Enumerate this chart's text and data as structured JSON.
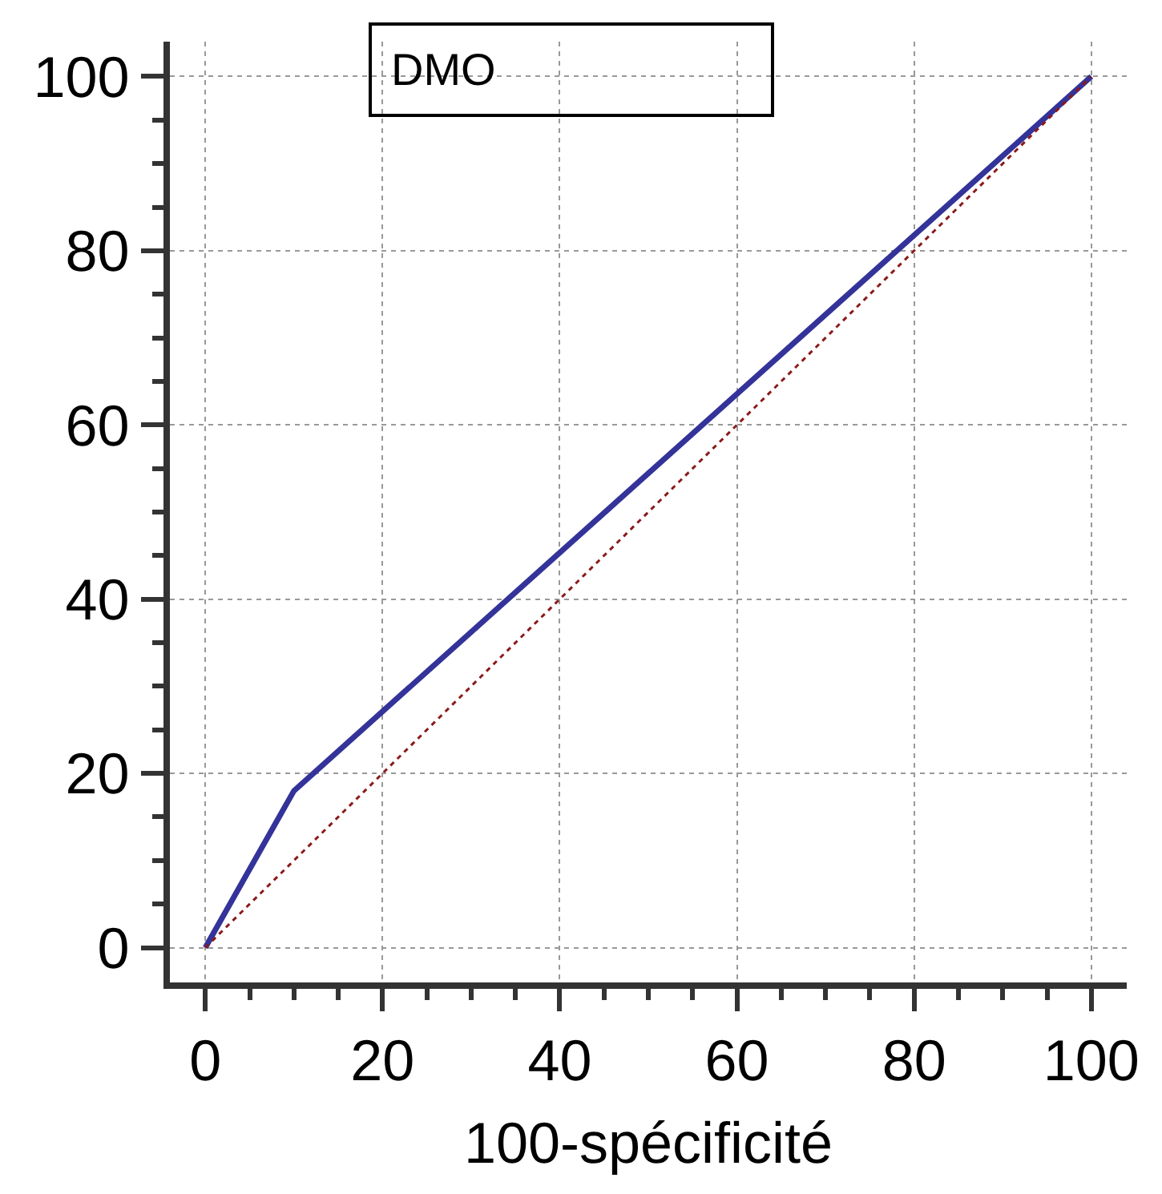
{
  "chart_data": {
    "type": "line",
    "title": "DMO",
    "xlabel": "100-spécificité",
    "xlim": [
      -4,
      104
    ],
    "ylim": [
      -4,
      104
    ],
    "xticks": [
      0,
      20,
      40,
      60,
      80,
      100
    ],
    "yticks": [
      0,
      20,
      40,
      60,
      80,
      100
    ],
    "grid": true,
    "marker": "none",
    "series": [
      {
        "x": [
          0,
          10,
          100
        ],
        "values": [
          0,
          18,
          100
        ],
        "color": "#333399",
        "line_style": "solid"
      },
      {
        "x": [
          0,
          100
        ],
        "values": [
          0,
          100
        ],
        "color": "#8b1a1a",
        "line_style": "dotted"
      }
    ]
  }
}
